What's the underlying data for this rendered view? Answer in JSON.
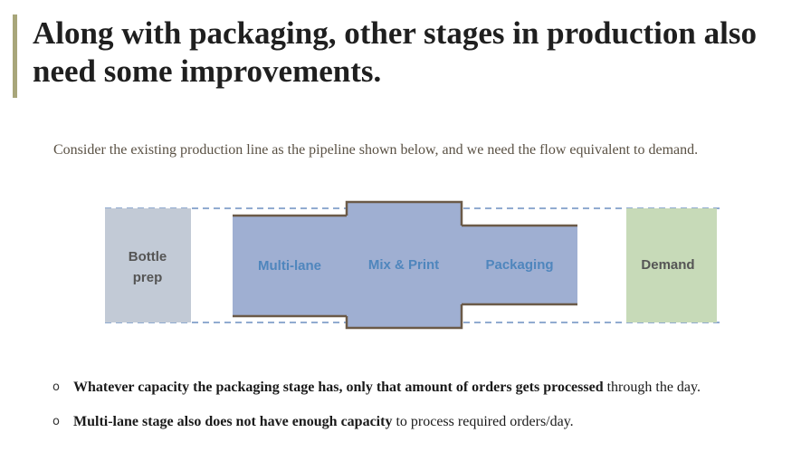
{
  "title": "Along with packaging, other stages in production also need some improvements.",
  "subtitle": "Consider the existing production line as the pipeline shown below, and we need the flow equivalent to demand.",
  "pipeline": {
    "stages": {
      "bottle_prep": {
        "line1": "Bottle",
        "line2": "prep",
        "color": "#c2cad6"
      },
      "multi_lane": {
        "label": "Multi-lane",
        "color": "#9fafd2"
      },
      "mix_print": {
        "label": "Mix & Print",
        "color": "#9fafd2"
      },
      "packaging": {
        "label": "Packaging",
        "color": "#9fafd2"
      },
      "demand": {
        "label": "Demand",
        "color": "#c7dab8"
      }
    },
    "label_color_pipe": "#4f86bd",
    "label_color_dark": "#555555",
    "border_color": "#6b5a48",
    "guide_color": "#4f79b4"
  },
  "bullets": [
    {
      "marker": "o",
      "bold": "Whatever capacity the packaging stage has, only that amount of orders gets processed",
      "rest": " through the day."
    },
    {
      "marker": "o",
      "bold": "Multi-lane stage also does not have enough capacity",
      "rest": " to process required orders/day."
    }
  ]
}
